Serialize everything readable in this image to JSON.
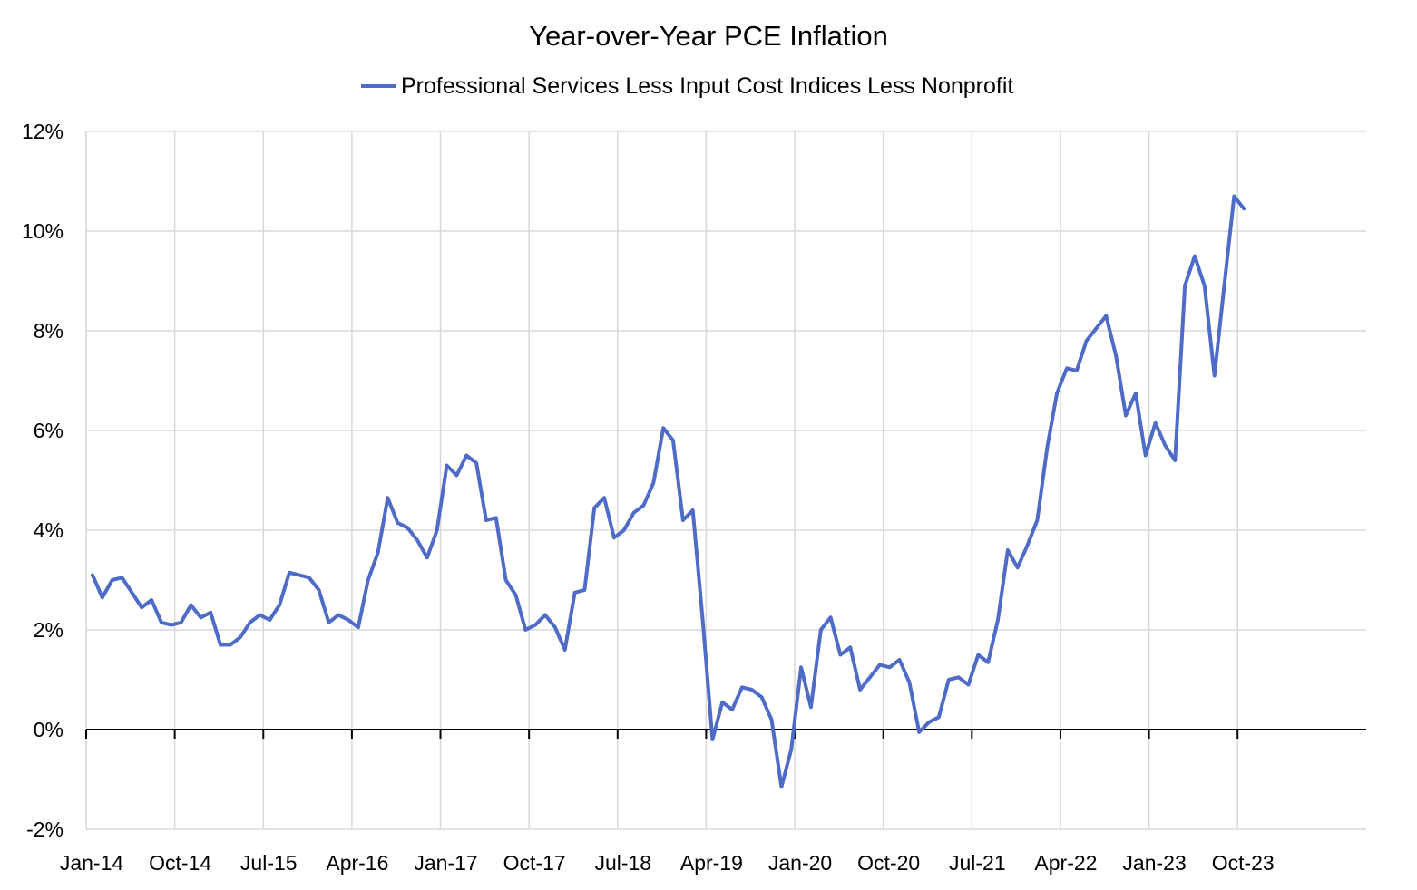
{
  "chart_data": {
    "type": "line",
    "title": "Year-over-Year PCE Inflation",
    "xlabel": "",
    "ylabel": "",
    "ylim": [
      -2,
      12
    ],
    "yticks": [
      "-2%",
      "0%",
      "2%",
      "4%",
      "6%",
      "8%",
      "10%",
      "12%"
    ],
    "xtick_labels": [
      "Jan-14",
      "Oct-14",
      "Jul-15",
      "Apr-16",
      "Jan-17",
      "Oct-17",
      "Jul-18",
      "Apr-19",
      "Jan-20",
      "Oct-20",
      "Jul-21",
      "Apr-22",
      "Jan-23",
      "Oct-23"
    ],
    "grid": true,
    "legend_position": "top",
    "line_color": "#4E6BC7",
    "series": [
      {
        "name": "Professional Services Less Input Cost Indices Less Nonprofit",
        "x_start": "Jan-14",
        "frequency": "monthly",
        "values": [
          3.1,
          2.65,
          3.0,
          3.05,
          2.75,
          2.45,
          2.6,
          2.15,
          2.1,
          2.15,
          2.5,
          2.25,
          2.35,
          1.7,
          1.7,
          1.85,
          2.15,
          2.3,
          2.2,
          2.5,
          3.15,
          3.1,
          3.05,
          2.8,
          2.15,
          2.3,
          2.2,
          2.05,
          3.0,
          3.55,
          4.65,
          4.15,
          4.05,
          3.8,
          3.45,
          4.0,
          5.3,
          5.1,
          5.5,
          5.35,
          4.2,
          4.25,
          3.0,
          2.7,
          2.0,
          2.1,
          2.3,
          2.05,
          1.6,
          2.75,
          2.8,
          4.45,
          4.65,
          3.85,
          4.0,
          4.35,
          4.5,
          4.95,
          6.05,
          5.8,
          4.2,
          4.4,
          2.2,
          -0.2,
          0.55,
          0.4,
          0.85,
          0.8,
          0.65,
          0.2,
          -1.15,
          -0.4,
          1.25,
          0.45,
          2.0,
          2.25,
          1.5,
          1.65,
          0.8,
          1.05,
          1.3,
          1.25,
          1.4,
          0.95,
          -0.05,
          0.15,
          0.25,
          1.0,
          1.05,
          0.9,
          1.5,
          1.35,
          2.2,
          3.6,
          3.25,
          3.7,
          4.2,
          5.65,
          6.75,
          7.25,
          7.2,
          7.8,
          8.05,
          8.3,
          7.5,
          6.3,
          6.75,
          5.5,
          6.15,
          5.7,
          5.4,
          8.9,
          9.5,
          8.9,
          7.1,
          8.9,
          10.7,
          10.45
        ]
      }
    ]
  }
}
